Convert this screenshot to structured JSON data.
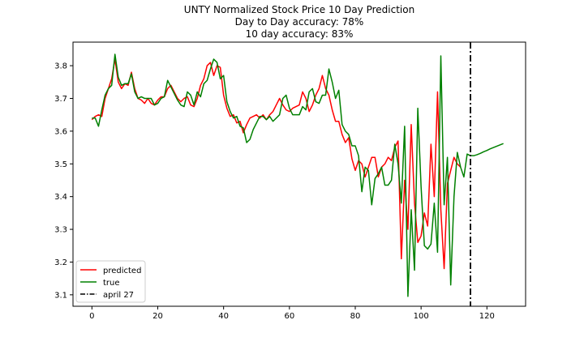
{
  "chart_data": {
    "type": "line",
    "title": [
      "UNTY Normalized Stock Price 10 Day Prediction",
      "Day to Day accuracy: 78%",
      "10 day accuracy: 83%"
    ],
    "xlim": [
      -5.75,
      131.75
    ],
    "ylim": [
      3.065,
      3.872
    ],
    "xticks": [
      0,
      20,
      40,
      60,
      80,
      100,
      120
    ],
    "yticks": [
      3.1,
      3.2,
      3.3,
      3.4,
      3.5,
      3.6,
      3.7,
      3.8
    ],
    "xtick_labels": [
      "0",
      "20",
      "40",
      "60",
      "80",
      "100",
      "120"
    ],
    "ytick_labels": [
      "3.1",
      "3.2",
      "3.3",
      "3.4",
      "3.5",
      "3.6",
      "3.7",
      "3.8"
    ],
    "grid": false,
    "legend_position": "lower-left",
    "vline": {
      "x": 115,
      "name": "april 27",
      "color": "#000000",
      "style": "dashdot"
    },
    "series": [
      {
        "name": "predicted",
        "color": "#ff0000",
        "x_start": 0,
        "values": [
          3.635,
          3.645,
          3.65,
          3.645,
          3.7,
          3.73,
          3.76,
          3.82,
          3.75,
          3.73,
          3.745,
          3.74,
          3.78,
          3.73,
          3.7,
          3.695,
          3.685,
          3.7,
          3.685,
          3.68,
          3.695,
          3.705,
          3.705,
          3.73,
          3.74,
          3.72,
          3.7,
          3.69,
          3.7,
          3.705,
          3.68,
          3.675,
          3.7,
          3.74,
          3.76,
          3.8,
          3.81,
          3.77,
          3.8,
          3.795,
          3.71,
          3.67,
          3.645,
          3.65,
          3.625,
          3.63,
          3.595,
          3.62,
          3.64,
          3.645,
          3.65,
          3.64,
          3.65,
          3.635,
          3.65,
          3.66,
          3.68,
          3.7,
          3.68,
          3.665,
          3.66,
          3.67,
          3.675,
          3.68,
          3.72,
          3.7,
          3.66,
          3.68,
          3.71,
          3.73,
          3.77,
          3.73,
          3.71,
          3.665,
          3.63,
          3.63,
          3.59,
          3.565,
          3.58,
          3.515,
          3.48,
          3.51,
          3.5,
          3.46,
          3.49,
          3.52,
          3.52,
          3.46,
          3.49,
          3.5,
          3.52,
          3.51,
          3.55,
          3.57,
          3.21,
          3.45,
          3.3,
          3.62,
          3.38,
          3.26,
          3.28,
          3.35,
          3.31,
          3.56,
          3.4,
          3.72,
          3.36,
          3.18,
          3.44,
          3.48,
          3.52,
          3.5,
          3.49
        ]
      },
      {
        "name": "true",
        "color": "#008000",
        "x_start": 0,
        "values": [
          3.64,
          3.64,
          3.615,
          3.665,
          3.71,
          3.73,
          3.74,
          3.835,
          3.765,
          3.74,
          3.745,
          3.745,
          3.775,
          3.72,
          3.7,
          3.705,
          3.7,
          3.7,
          3.7,
          3.68,
          3.685,
          3.7,
          3.705,
          3.755,
          3.735,
          3.715,
          3.695,
          3.68,
          3.675,
          3.72,
          3.71,
          3.68,
          3.72,
          3.705,
          3.745,
          3.755,
          3.79,
          3.82,
          3.81,
          3.76,
          3.77,
          3.69,
          3.66,
          3.64,
          3.645,
          3.615,
          3.61,
          3.565,
          3.575,
          3.605,
          3.625,
          3.645,
          3.645,
          3.635,
          3.645,
          3.63,
          3.64,
          3.65,
          3.7,
          3.71,
          3.67,
          3.65,
          3.65,
          3.65,
          3.675,
          3.665,
          3.72,
          3.73,
          3.69,
          3.685,
          3.71,
          3.71,
          3.79,
          3.75,
          3.7,
          3.725,
          3.62,
          3.6,
          3.59,
          3.555,
          3.555,
          3.525,
          3.415,
          3.49,
          3.48,
          3.375,
          3.455,
          3.47,
          3.49,
          3.435,
          3.435,
          3.45,
          3.56,
          3.5,
          3.38,
          3.615,
          3.095,
          3.36,
          3.175,
          3.67,
          3.43,
          3.25,
          3.24,
          3.255,
          3.38,
          3.23,
          3.83,
          3.375,
          3.52,
          3.13,
          3.4,
          3.535,
          3.49,
          3.46,
          3.53,
          3.525,
          3.525,
          3.528,
          3.532,
          3.537,
          3.541,
          3.546,
          3.55,
          3.554,
          3.558,
          3.562
        ]
      }
    ]
  }
}
